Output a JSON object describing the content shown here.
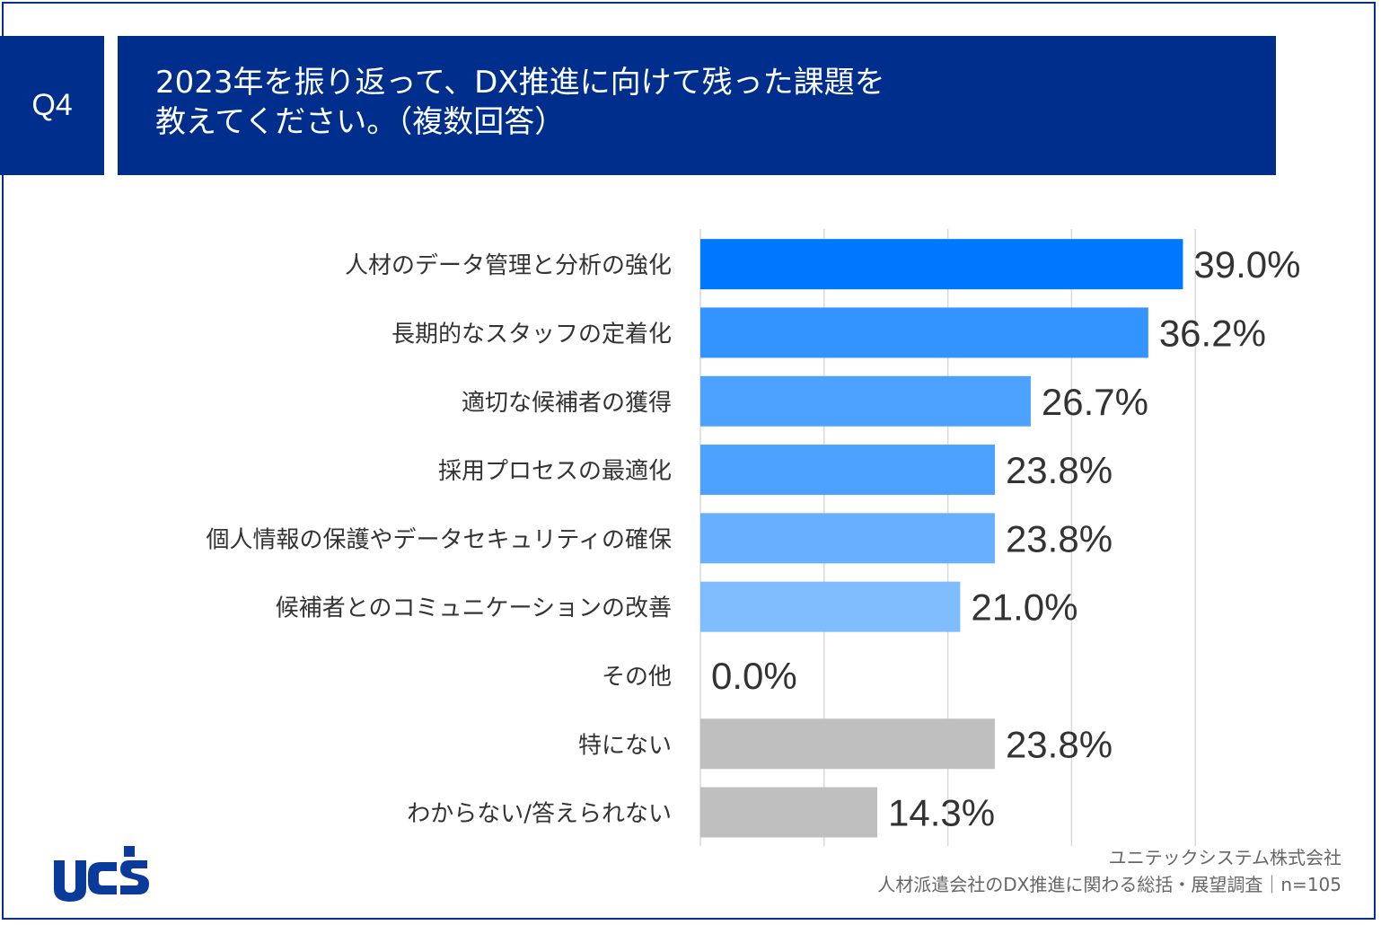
{
  "header": {
    "badge": "Q4",
    "title_line1": "2023年を振り返って、DX推進に向けて残った課題を",
    "title_line2": "教えてください。（複数回答）"
  },
  "footer": {
    "company": "ユニテックシステム株式会社",
    "survey": "人材派遣会社のDX推進に関わる総括・展望調査｜n=105"
  },
  "logo": {
    "text": "uc's"
  },
  "colors": {
    "brand": "#002e8c",
    "bar_highlight": "#0077ff",
    "bar_gray": "#bfbfbf",
    "gridline": "#d9d9d9",
    "label_text": "#333333"
  },
  "chart_data": {
    "type": "bar",
    "orientation": "horizontal",
    "categories": [
      "人材のデータ管理と分析の強化",
      "長期的なスタッフの定着化",
      "適切な候補者の獲得",
      "採用プロセスの最適化",
      "個人情報の保護やデータセキュリティの確保",
      "候補者とのコミュニケーションの改善",
      "その他",
      "特にない",
      "わからない/答えられない"
    ],
    "values": [
      39.0,
      36.2,
      26.7,
      23.8,
      23.8,
      21.0,
      0.0,
      23.8,
      14.3
    ],
    "value_labels": [
      "39.0%",
      "36.2%",
      "26.7%",
      "23.8%",
      "23.8%",
      "21.0%",
      "0.0%",
      "23.8%",
      "14.3%"
    ],
    "bar_colors": [
      "#0077ff",
      "#3394ff",
      "#4da2ff",
      "#4da2ff",
      "#66b0ff",
      "#80bdff",
      "#80bdff",
      "#bfbfbf",
      "#bfbfbf"
    ],
    "xlim": [
      0,
      40
    ],
    "grid": true
  }
}
